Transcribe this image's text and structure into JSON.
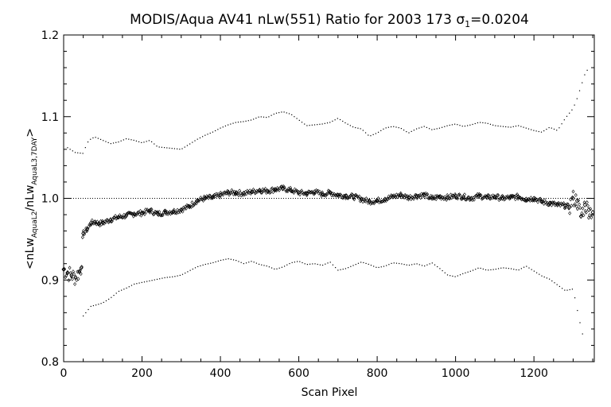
{
  "chart_data": {
    "type": "scatter",
    "title": "MODIS/Aqua AV41 nLw(551) Ratio for 2003 173 σ₁=0.0204",
    "title_parts": {
      "main": "MODIS/Aqua AV41 nLw(551) Ratio for 2003 173 ",
      "sigma": "σ",
      "sigma_sub": "1",
      "sigma_value": "=0.0204"
    },
    "xlabel": "Scan Pixel",
    "ylabel": "<nLwₐᵤₐL2/nLwₐL3,7DAY>",
    "ylabel_parts": {
      "open": "<nLw",
      "sub1": "AquaL2",
      "mid": "/nLw",
      "sub2": "AquaL3,7DAY",
      "close": ">"
    },
    "xlim": [
      0,
      1354
    ],
    "ylim": [
      0.8,
      1.2
    ],
    "x_ticks": [
      0,
      200,
      400,
      600,
      800,
      1000,
      1200
    ],
    "x_tick_labels": [
      "0",
      "200",
      "400",
      "600",
      "800",
      "1000",
      "1200"
    ],
    "y_ticks": [
      0.8,
      0.9,
      1.0,
      1.1,
      1.2
    ],
    "y_tick_labels": [
      "0.8",
      "0.9",
      "1.0",
      "1.1",
      "1.2"
    ],
    "reference_line": 1.0,
    "grid": false,
    "legend": "none",
    "series": [
      {
        "marker": "diamond",
        "x": [
          0,
          10,
          20,
          30,
          40,
          45,
          50,
          60,
          70,
          80,
          90,
          100,
          120,
          140,
          160,
          180,
          200,
          220,
          240,
          260,
          280,
          300,
          320,
          340,
          360,
          380,
          400,
          420,
          440,
          460,
          480,
          500,
          520,
          540,
          560,
          580,
          600,
          620,
          640,
          660,
          680,
          700,
          720,
          740,
          760,
          780,
          800,
          820,
          840,
          860,
          880,
          900,
          920,
          940,
          960,
          980,
          1000,
          1020,
          1040,
          1060,
          1080,
          1100,
          1120,
          1140,
          1160,
          1180,
          1200,
          1220,
          1240,
          1260,
          1280,
          1290,
          1300,
          1310,
          1320,
          1330,
          1340,
          1350
        ],
        "y": [
          0.913,
          0.909,
          0.906,
          0.903,
          0.91,
          0.915,
          0.957,
          0.962,
          0.97,
          0.971,
          0.969,
          0.97,
          0.974,
          0.977,
          0.979,
          0.981,
          0.982,
          0.985,
          0.981,
          0.983,
          0.984,
          0.986,
          0.99,
          0.997,
          1.0,
          1.001,
          1.004,
          1.007,
          1.007,
          1.006,
          1.008,
          1.01,
          1.009,
          1.011,
          1.012,
          1.01,
          1.007,
          1.006,
          1.008,
          1.005,
          1.007,
          1.004,
          1.003,
          1.002,
          0.999,
          0.996,
          0.997,
          0.999,
          1.002,
          1.004,
          1.001,
          1.003,
          1.004,
          1.0,
          1.002,
          1.001,
          1.003,
          1.002,
          1.0,
          1.003,
          1.001,
          1.002,
          1.0,
          1.001,
          1.002,
          0.999,
          1.0,
          0.996,
          0.994,
          0.992,
          0.991,
          0.989,
          1.0,
          0.997,
          0.978,
          0.992,
          0.986,
          0.983
        ]
      },
      {
        "marker": "dot",
        "x": [
          10,
          30,
          50,
          60,
          70,
          80,
          100,
          120,
          140,
          160,
          180,
          200,
          220,
          240,
          260,
          280,
          300,
          320,
          340,
          360,
          380,
          400,
          420,
          440,
          460,
          480,
          500,
          520,
          540,
          560,
          580,
          600,
          620,
          640,
          660,
          680,
          700,
          720,
          740,
          760,
          780,
          800,
          820,
          840,
          860,
          880,
          900,
          920,
          940,
          960,
          980,
          1000,
          1020,
          1040,
          1060,
          1080,
          1100,
          1120,
          1140,
          1160,
          1180,
          1200,
          1220,
          1240,
          1260,
          1280,
          1300,
          1310,
          1320,
          1330,
          1340
        ],
        "y": [
          1.062,
          1.056,
          1.055,
          1.068,
          1.073,
          1.075,
          1.071,
          1.067,
          1.069,
          1.073,
          1.071,
          1.068,
          1.071,
          1.063,
          1.062,
          1.061,
          1.06,
          1.066,
          1.072,
          1.077,
          1.081,
          1.086,
          1.09,
          1.093,
          1.094,
          1.096,
          1.1,
          1.099,
          1.104,
          1.106,
          1.103,
          1.096,
          1.089,
          1.09,
          1.091,
          1.093,
          1.098,
          1.092,
          1.087,
          1.085,
          1.076,
          1.08,
          1.086,
          1.088,
          1.086,
          1.08,
          1.085,
          1.088,
          1.084,
          1.086,
          1.089,
          1.091,
          1.088,
          1.09,
          1.093,
          1.092,
          1.089,
          1.088,
          1.087,
          1.089,
          1.086,
          1.083,
          1.081,
          1.087,
          1.083,
          1.098,
          1.11,
          1.122,
          1.137,
          1.152,
          1.16
        ]
      },
      {
        "marker": "dot",
        "x": [
          50,
          60,
          70,
          80,
          100,
          120,
          140,
          160,
          180,
          200,
          220,
          240,
          260,
          280,
          300,
          320,
          340,
          360,
          380,
          400,
          420,
          440,
          460,
          480,
          500,
          520,
          540,
          560,
          580,
          600,
          620,
          640,
          660,
          680,
          700,
          720,
          740,
          760,
          780,
          800,
          820,
          840,
          860,
          880,
          900,
          920,
          940,
          960,
          980,
          1000,
          1020,
          1040,
          1060,
          1080,
          1100,
          1120,
          1140,
          1160,
          1180,
          1200,
          1220,
          1240,
          1260,
          1280,
          1300,
          1310,
          1320,
          1330
        ],
        "y": [
          0.856,
          0.862,
          0.868,
          0.869,
          0.872,
          0.878,
          0.886,
          0.89,
          0.895,
          0.897,
          0.899,
          0.901,
          0.903,
          0.904,
          0.906,
          0.911,
          0.916,
          0.919,
          0.921,
          0.924,
          0.926,
          0.924,
          0.92,
          0.923,
          0.919,
          0.917,
          0.913,
          0.916,
          0.921,
          0.923,
          0.919,
          0.92,
          0.918,
          0.922,
          0.912,
          0.914,
          0.918,
          0.922,
          0.919,
          0.915,
          0.917,
          0.921,
          0.92,
          0.918,
          0.92,
          0.917,
          0.921,
          0.914,
          0.906,
          0.904,
          0.908,
          0.911,
          0.915,
          0.912,
          0.913,
          0.915,
          0.914,
          0.912,
          0.917,
          0.911,
          0.905,
          0.901,
          0.894,
          0.887,
          0.889,
          0.865,
          0.842,
          0.822
        ]
      }
    ]
  }
}
